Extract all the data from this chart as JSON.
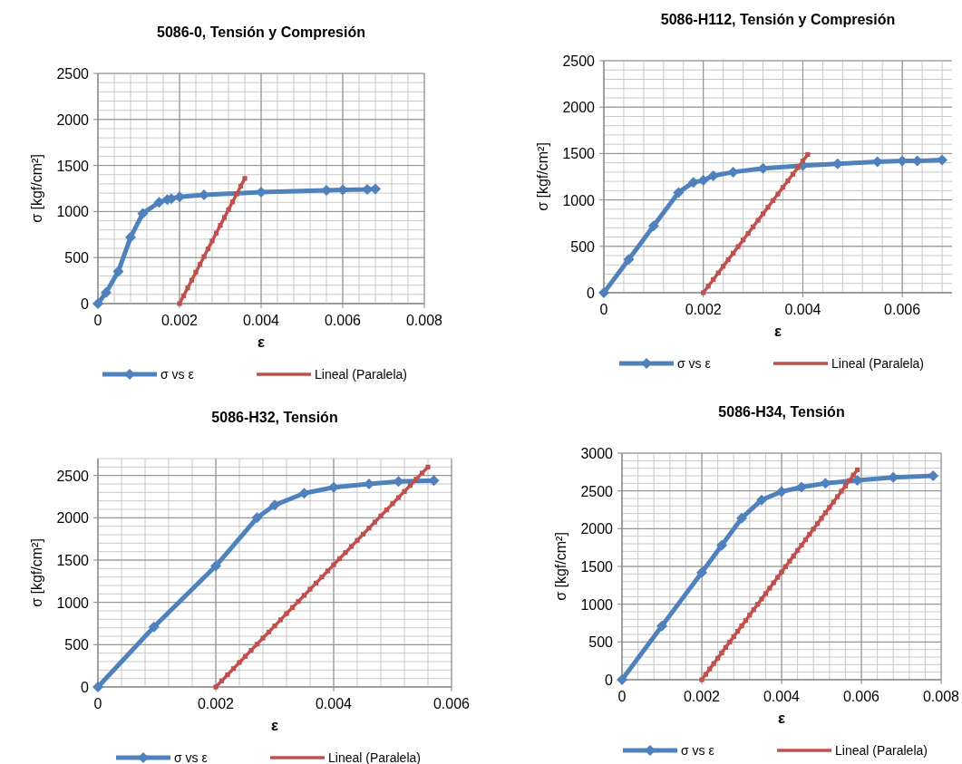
{
  "chart_data": [
    {
      "type": "line",
      "title": "5086-0, Tensión y Compresión",
      "xlabel": "ε",
      "ylabel": "σ [kgf/cm²]",
      "xlim": [
        0,
        0.008
      ],
      "xticks": [
        0,
        0.002,
        0.004,
        0.006,
        0.008
      ],
      "ylim": [
        0,
        2500
      ],
      "yticks": [
        0,
        500,
        1000,
        1500,
        2000,
        2500
      ],
      "grid": true,
      "legend": "bottom",
      "line_style": "solid",
      "series": [
        {
          "name": "σ vs ε",
          "color": "#4f81bd",
          "marker": "diamond",
          "x": [
            0,
            0.0002,
            0.0005,
            0.0008,
            0.0011,
            0.0015,
            0.0017,
            0.0018,
            0.002,
            0.0026,
            0.004,
            0.0056,
            0.006,
            0.0066,
            0.0068
          ],
          "values": [
            0,
            120,
            350,
            720,
            980,
            1100,
            1130,
            1140,
            1160,
            1180,
            1210,
            1230,
            1235,
            1240,
            1245
          ]
        },
        {
          "name": "Lineal (Paralela)",
          "color": "#c0504d",
          "marker": "square",
          "x": [
            0.002,
            0.0021,
            0.0022,
            0.0023,
            0.0024,
            0.0025,
            0.0026,
            0.0027,
            0.0028,
            0.0029,
            0.003,
            0.0031,
            0.0032,
            0.0033,
            0.0034,
            0.0035,
            0.0036
          ],
          "values": [
            0,
            85,
            170,
            255,
            340,
            425,
            510,
            595,
            680,
            765,
            850,
            935,
            1020,
            1105,
            1190,
            1275,
            1360
          ]
        }
      ]
    },
    {
      "type": "line",
      "title": "5086-H112, Tensión y Compresión",
      "xlabel": "ε",
      "ylabel": "σ [kgf/cm²]",
      "xlim": [
        0,
        0.007
      ],
      "xticks": [
        0,
        0.002,
        0.004,
        0.006
      ],
      "ylim": [
        0,
        2500
      ],
      "yticks": [
        0,
        500,
        1000,
        1500,
        2000,
        2500
      ],
      "grid": true,
      "legend": "bottom",
      "line_style": "solid",
      "series": [
        {
          "name": "σ vs ε",
          "color": "#4f81bd",
          "marker": "diamond",
          "x": [
            0,
            0.0005,
            0.001,
            0.0015,
            0.0018,
            0.002,
            0.0022,
            0.0026,
            0.0032,
            0.004,
            0.0047,
            0.0055,
            0.006,
            0.0063,
            0.0068
          ],
          "values": [
            0,
            360,
            720,
            1080,
            1190,
            1210,
            1260,
            1300,
            1340,
            1370,
            1390,
            1410,
            1420,
            1420,
            1430
          ]
        },
        {
          "name": "Lineal (Paralela)",
          "color": "#c0504d",
          "marker": "square",
          "x": [
            0.002,
            0.0021,
            0.0022,
            0.0023,
            0.0024,
            0.0025,
            0.0026,
            0.0027,
            0.0028,
            0.0029,
            0.003,
            0.0031,
            0.0032,
            0.0033,
            0.0034,
            0.0035,
            0.0036,
            0.0037,
            0.0038,
            0.0039,
            0.004,
            0.0041
          ],
          "values": [
            0,
            71,
            142,
            213,
            284,
            355,
            426,
            497,
            568,
            639,
            710,
            780,
            851,
            922,
            993,
            1064,
            1135,
            1206,
            1277,
            1348,
            1419,
            1490
          ]
        }
      ]
    },
    {
      "type": "line",
      "title": "5086-H32, Tensión",
      "xlabel": "ε",
      "ylabel": "σ [kgf/cm²]",
      "xlim": [
        0,
        0.006
      ],
      "xticks": [
        0,
        0.002,
        0.004,
        0.006
      ],
      "ylim": [
        0,
        2700
      ],
      "yticks": [
        0,
        500,
        1000,
        1500,
        2000,
        2500
      ],
      "grid": true,
      "legend": "bottom",
      "line_style": "solid",
      "series": [
        {
          "name": "σ vs ε",
          "color": "#4f81bd",
          "marker": "diamond",
          "x": [
            0,
            0.00095,
            0.002,
            0.0027,
            0.003,
            0.0035,
            0.004,
            0.0046,
            0.0051,
            0.0057
          ],
          "values": [
            0,
            710,
            1430,
            2000,
            2150,
            2290,
            2360,
            2400,
            2430,
            2440
          ]
        },
        {
          "name": "Lineal (Paralela)",
          "color": "#c0504d",
          "marker": "square",
          "x": [
            0.002,
            0.0021,
            0.0022,
            0.0023,
            0.0024,
            0.0025,
            0.0026,
            0.0027,
            0.0028,
            0.0029,
            0.003,
            0.0031,
            0.0032,
            0.0033,
            0.0034,
            0.0035,
            0.0036,
            0.0037,
            0.0038,
            0.0039,
            0.004,
            0.0041,
            0.0042,
            0.0043,
            0.0044,
            0.0045,
            0.0046,
            0.0047,
            0.0048,
            0.0049,
            0.005,
            0.0051,
            0.0052,
            0.0053,
            0.0054,
            0.0055,
            0.0056
          ],
          "values": [
            0,
            72,
            144,
            217,
            289,
            361,
            433,
            506,
            578,
            650,
            722,
            794,
            867,
            939,
            1011,
            1083,
            1156,
            1228,
            1300,
            1372,
            1444,
            1517,
            1589,
            1661,
            1733,
            1806,
            1878,
            1950,
            2022,
            2094,
            2167,
            2239,
            2311,
            2383,
            2456,
            2528,
            2600
          ]
        }
      ]
    },
    {
      "type": "line",
      "title": "5086-H34, Tensión",
      "xlabel": "ε",
      "ylabel": "σ [kgf/cm²]",
      "xlim": [
        0,
        0.008
      ],
      "xticks": [
        0,
        0.002,
        0.004,
        0.006,
        0.008
      ],
      "ylim": [
        0,
        3000
      ],
      "yticks": [
        0,
        500,
        1000,
        1500,
        2000,
        2500,
        3000
      ],
      "grid": true,
      "legend": "bottom",
      "line_style": "solid",
      "series": [
        {
          "name": "σ vs ε",
          "color": "#4f81bd",
          "marker": "diamond",
          "x": [
            0,
            0.001,
            0.002,
            0.0025,
            0.003,
            0.0035,
            0.004,
            0.0045,
            0.0051,
            0.0059,
            0.0068,
            0.0078
          ],
          "values": [
            0,
            710,
            1420,
            1780,
            2140,
            2380,
            2490,
            2550,
            2600,
            2640,
            2680,
            2700
          ]
        },
        {
          "name": "Lineal (Paralela)",
          "color": "#c0504d",
          "marker": "square",
          "x": [
            0.002,
            0.0021,
            0.0022,
            0.0023,
            0.0024,
            0.0025,
            0.0026,
            0.0027,
            0.0028,
            0.0029,
            0.003,
            0.0031,
            0.0032,
            0.0033,
            0.0034,
            0.0035,
            0.0036,
            0.0037,
            0.0038,
            0.0039,
            0.004,
            0.0041,
            0.0042,
            0.0043,
            0.0044,
            0.0045,
            0.0046,
            0.0047,
            0.0048,
            0.0049,
            0.005,
            0.0051,
            0.0052,
            0.0053,
            0.0054,
            0.0055,
            0.0056,
            0.0057,
            0.0058,
            0.0059
          ],
          "values": [
            0,
            71,
            143,
            214,
            285,
            356,
            428,
            499,
            570,
            642,
            713,
            784,
            855,
            927,
            998,
            1069,
            1140,
            1212,
            1283,
            1354,
            1426,
            1497,
            1568,
            1639,
            1711,
            1782,
            1853,
            1924,
            1996,
            2067,
            2138,
            2210,
            2281,
            2352,
            2423,
            2495,
            2566,
            2637,
            2709,
            2780
          ]
        }
      ]
    }
  ]
}
